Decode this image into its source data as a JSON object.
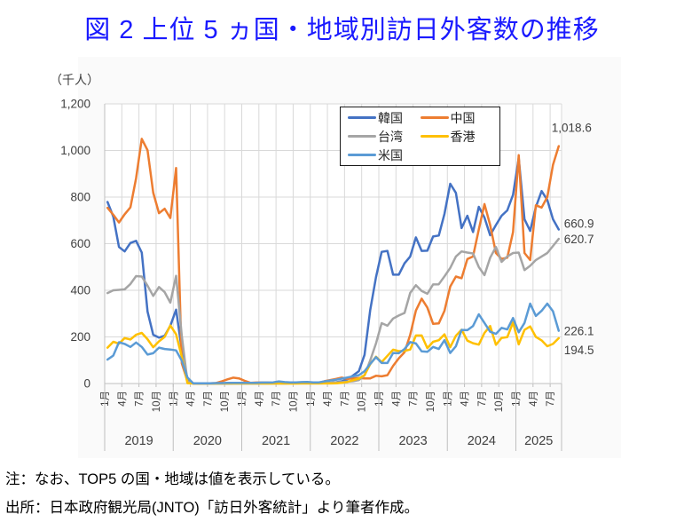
{
  "title": "図 2 上位 5 ヵ国・地域別訪日外客数の推移",
  "note": "注：なお、TOP5 の国・地域は値を表示している。",
  "source": "出所：日本政府観光局(JNTO)「訪日外客統計」より筆者作成。",
  "colors": {
    "title": "#1A1AFF",
    "grid": "#D9D9D9",
    "axis": "#BFBFBF",
    "tick_text": "#404040",
    "plot_bg": "#FFFFFF"
  },
  "chart_data": {
    "type": "line",
    "unit_label": "（千人）",
    "x_description": "monthly, Jan 2019 - Aug 2025",
    "years": [
      "2019",
      "2020",
      "2021",
      "2022",
      "2023",
      "2024",
      "2025"
    ],
    "months_per_year": [
      12,
      12,
      12,
      12,
      12,
      12,
      8
    ],
    "quarter_labels": [
      "1月",
      "4月",
      "7月",
      "10月"
    ],
    "ylim": [
      0,
      1200
    ],
    "ytick_labels": [
      "0",
      "200",
      "400",
      "600",
      "800",
      "1,000",
      "1,200"
    ],
    "grid": true,
    "legend_position": "top-center-inside",
    "series": [
      {
        "name": "韓国",
        "color": "#4472C4",
        "end_label": "660.9",
        "values": [
          779,
          716,
          586,
          567,
          603,
          612,
          562,
          309,
          209,
          197,
          205,
          248,
          317,
          144,
          17,
          0.3,
          0.1,
          0.1,
          0.1,
          0.1,
          0.1,
          0.1,
          0.2,
          0.3,
          0.3,
          0.3,
          0.3,
          0.3,
          0.4,
          0.4,
          0.4,
          0.4,
          0.6,
          0.6,
          0.9,
          1.2,
          0.9,
          1,
          1.4,
          2.9,
          5.2,
          9.4,
          17.8,
          34.7,
          52.8,
          123,
          315,
          456,
          565,
          569,
          467,
          467,
          516,
          545,
          627,
          569,
          570,
          631,
          635,
          728,
          857,
          818,
          667,
          720,
          650,
          758,
          712,
          636,
          680,
          720,
          743,
          810,
          967,
          705,
          655,
          757,
          826,
          788,
          705,
          660.9
        ]
      },
      {
        "name": "中国",
        "color": "#ED7D31",
        "end_label": "1,018.6",
        "values": [
          754,
          724,
          691,
          726,
          756,
          881,
          1050,
          1001,
          819,
          731,
          750,
          710,
          925,
          87,
          10,
          0.1,
          0.1,
          0.3,
          0.8,
          2,
          9,
          18,
          25,
          22,
          12,
          3,
          4,
          4,
          4,
          3,
          3,
          2,
          2,
          2,
          2,
          2,
          3,
          2,
          10,
          15,
          20,
          25,
          20,
          22,
          24,
          22,
          22,
          33,
          31,
          36,
          76,
          108,
          134,
          209,
          313,
          364,
          326,
          256,
          258,
          312,
          416,
          459,
          452,
          534,
          545,
          661,
          770,
          680,
          560,
          535,
          540,
          650,
          980,
          560,
          530,
          765,
          755,
          800,
          938,
          1018.6
        ]
      },
      {
        "name": "台湾",
        "color": "#A5A5A5",
        "end_label": "620.7",
        "values": [
          388,
          400,
          402,
          404,
          427,
          461,
          459,
          420,
          376,
          414,
          392,
          347,
          462,
          205,
          7.6,
          0.1,
          0.1,
          0.1,
          0.1,
          0.2,
          0.2,
          0.3,
          0.3,
          0.4,
          0.3,
          0.3,
          0.3,
          0.3,
          0.3,
          0.3,
          0.4,
          0.4,
          0.4,
          0.5,
          0.5,
          0.5,
          0.5,
          0.5,
          1.2,
          2.9,
          4.5,
          6,
          8,
          10,
          15,
          35,
          99,
          172,
          259,
          248,
          279,
          292,
          303,
          389,
          422,
          397,
          385,
          425,
          426,
          460,
          496,
          545,
          567,
          562,
          558,
          500,
          465,
          540,
          586,
          522,
          545,
          560,
          562,
          487,
          505,
          530,
          545,
          560,
          590,
          620.7
        ]
      },
      {
        "name": "香港",
        "color": "#FFC000",
        "end_label": "194.5",
        "values": [
          154,
          179,
          171,
          195,
          189,
          209,
          217,
          190,
          156,
          181,
          200,
          249,
          211,
          115,
          1.4,
          0,
          0,
          0,
          0,
          0,
          0,
          0.1,
          0.1,
          0.1,
          0.1,
          0.1,
          0.1,
          0.1,
          0.1,
          0.1,
          0.1,
          0.1,
          0.1,
          0.1,
          0.2,
          0.2,
          0.2,
          0.2,
          0.3,
          0.5,
          1,
          2.7,
          7,
          14,
          21,
          36,
          83,
          115,
          92,
          119,
          145,
          139,
          140,
          146,
          206,
          206,
          152,
          179,
          186,
          211,
          156,
          205,
          231,
          184,
          173,
          167,
          217,
          247,
          166,
          196,
          199,
          262,
          168,
          230,
          245,
          200,
          185,
          160,
          170,
          194.5
        ]
      },
      {
        "name": "米国",
        "color": "#5B9BD5",
        "end_label": "226.1",
        "values": [
          103,
          120,
          177,
          170,
          157,
          176,
          157,
          124,
          130,
          154,
          148,
          146,
          142,
          98,
          26,
          1,
          1,
          1,
          1,
          2,
          2,
          3,
          3,
          3,
          3,
          3,
          3,
          4,
          4,
          5,
          9,
          6,
          5,
          5,
          6,
          7,
          5,
          5,
          9,
          13,
          16,
          21,
          26,
          31,
          36,
          53,
          84,
          113,
          88,
          88,
          131,
          130,
          148,
          178,
          172,
          138,
          136,
          157,
          148,
          186,
          131,
          160,
          230,
          229,
          247,
          297,
          260,
          222,
          213,
          239,
          232,
          281,
          220,
          260,
          343,
          290,
          312,
          343,
          310,
          226.1
        ]
      }
    ]
  }
}
